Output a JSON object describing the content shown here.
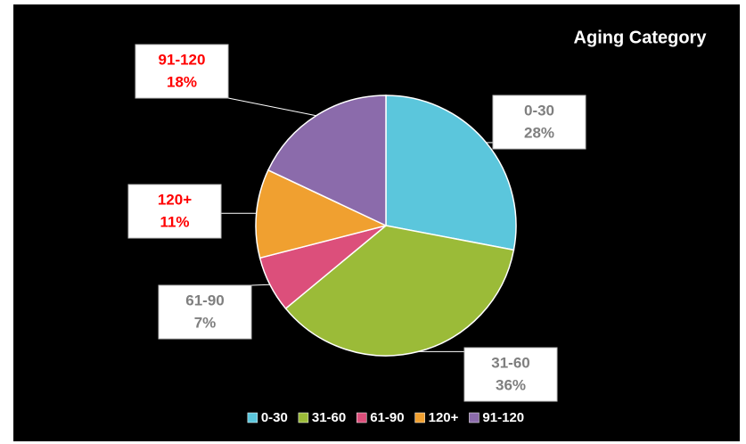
{
  "chart_data": {
    "type": "pie",
    "title": "Aging Category",
    "categories": [
      "0-30",
      "31-60",
      "61-90",
      "120+",
      "91-120"
    ],
    "values": [
      28,
      36,
      7,
      11,
      18
    ],
    "value_labels": [
      "28%",
      "36%",
      "7%",
      "11%",
      "18%"
    ],
    "colors": [
      "#5bc6dc",
      "#9bbb38",
      "#dc4f7b",
      "#f0a030",
      "#8b6bab"
    ],
    "label_colors": [
      "#7f7f7f",
      "#7f7f7f",
      "#7f7f7f",
      "#ff0000",
      "#ff0000"
    ],
    "legend": "bottom"
  }
}
